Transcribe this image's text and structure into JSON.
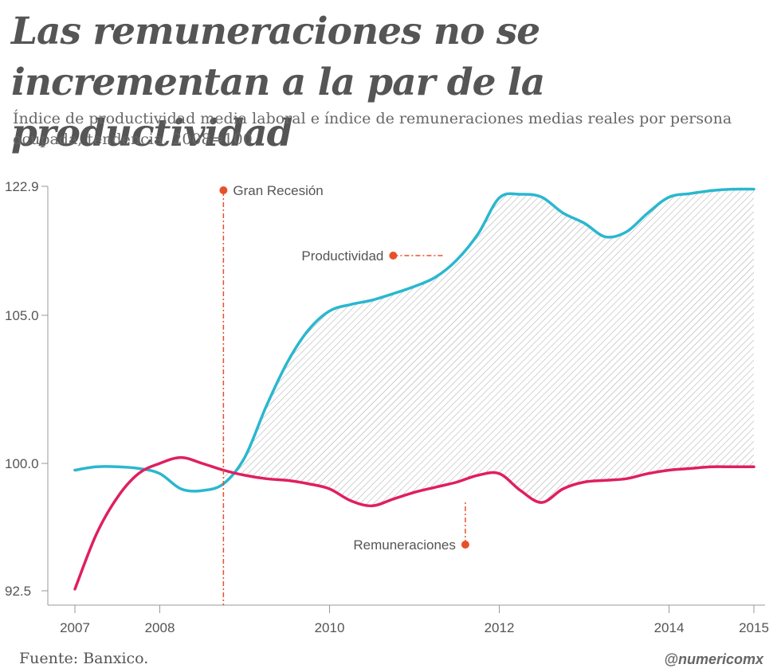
{
  "header": {
    "title": "Las remuneraciones no se incrementan a la par de la productividad",
    "subtitle": "Índice de productividad media laboral e índice de remuneraciones medias reales por persona ocupada, tendencia, 2008=100"
  },
  "footer": {
    "source": "Fuente: Banxico.",
    "credit": "@numericomx"
  },
  "colors": {
    "productividad": "#2ab7cf",
    "remuneraciones": "#df1f60",
    "annotation": "#e8502a",
    "axis": "#999999",
    "text": "#555555"
  },
  "chart_data": {
    "type": "line",
    "title": "Las remuneraciones no se incrementan a la par de la productividad",
    "subtitle": "Índice de productividad media laboral e índice de remuneraciones medias reales por persona ocupada, tendencia, 2008=100",
    "xlabel": "",
    "ylabel": "",
    "xlim": [
      2007,
      2015
    ],
    "ylim": [
      92.5,
      122.9
    ],
    "xticks": [
      "2007",
      "2008",
      "2010",
      "2012",
      "2014",
      "2015"
    ],
    "xtick_values": [
      2007,
      2008,
      2010,
      2012,
      2014,
      2015
    ],
    "yticks": [
      "92.5",
      "100.0",
      "105.0",
      "122.9"
    ],
    "ytick_values": [
      92.5,
      100.0,
      105.0,
      122.9
    ],
    "axis_break": {
      "between": [
        105.0,
        122.9
      ],
      "note": "y axis is non-linear above 105.0"
    },
    "grid": false,
    "shaded_gap": true,
    "series": [
      {
        "name": "Productividad",
        "x": [
          2007.0,
          2007.25,
          2007.5,
          2007.75,
          2008.0,
          2008.25,
          2008.5,
          2008.75,
          2009.0,
          2009.25,
          2009.5,
          2009.75,
          2010.0,
          2010.25,
          2010.5,
          2010.75,
          2011.0,
          2011.25,
          2011.5,
          2011.75,
          2012.0,
          2012.25,
          2012.5,
          2012.75,
          2013.0,
          2013.25,
          2013.5,
          2013.75,
          2014.0,
          2014.25,
          2014.5,
          2014.75,
          2015.0
        ],
        "values": [
          99.6,
          99.8,
          99.8,
          99.7,
          99.4,
          98.5,
          98.4,
          98.8,
          100.2,
          101.9,
          103.4,
          104.5,
          105.6,
          106.5,
          107.1,
          108.0,
          109.0,
          110.3,
          112.7,
          116.3,
          121.3,
          121.8,
          121.4,
          119.2,
          117.8,
          115.9,
          116.6,
          119.2,
          121.4,
          121.9,
          122.3,
          122.5,
          122.5
        ]
      },
      {
        "name": "Remuneraciones",
        "x": [
          2007.0,
          2007.25,
          2007.5,
          2007.75,
          2008.0,
          2008.25,
          2008.5,
          2008.75,
          2009.0,
          2009.25,
          2009.5,
          2009.75,
          2010.0,
          2010.25,
          2010.5,
          2010.75,
          2011.0,
          2011.25,
          2011.5,
          2011.75,
          2012.0,
          2012.25,
          2012.5,
          2012.75,
          2013.0,
          2013.25,
          2013.5,
          2013.75,
          2014.0,
          2014.25,
          2014.5,
          2014.75,
          2015.0
        ],
        "values": [
          92.6,
          95.8,
          98.0,
          99.4,
          100.0,
          100.2,
          100.0,
          99.6,
          99.3,
          99.1,
          99.0,
          98.8,
          98.5,
          97.8,
          97.5,
          97.9,
          98.3,
          98.6,
          98.9,
          99.3,
          99.4,
          98.4,
          97.7,
          98.5,
          98.9,
          99.0,
          99.1,
          99.4,
          99.6,
          99.7,
          99.8,
          99.8,
          99.8
        ]
      }
    ],
    "annotations": [
      {
        "label": "Gran Recesión",
        "x": 2008.75
      },
      {
        "label": "Productividad",
        "x": 2010.75,
        "series": "Productividad"
      },
      {
        "label": "Remuneraciones",
        "x": 2011.6,
        "series": "Remuneraciones"
      }
    ]
  }
}
